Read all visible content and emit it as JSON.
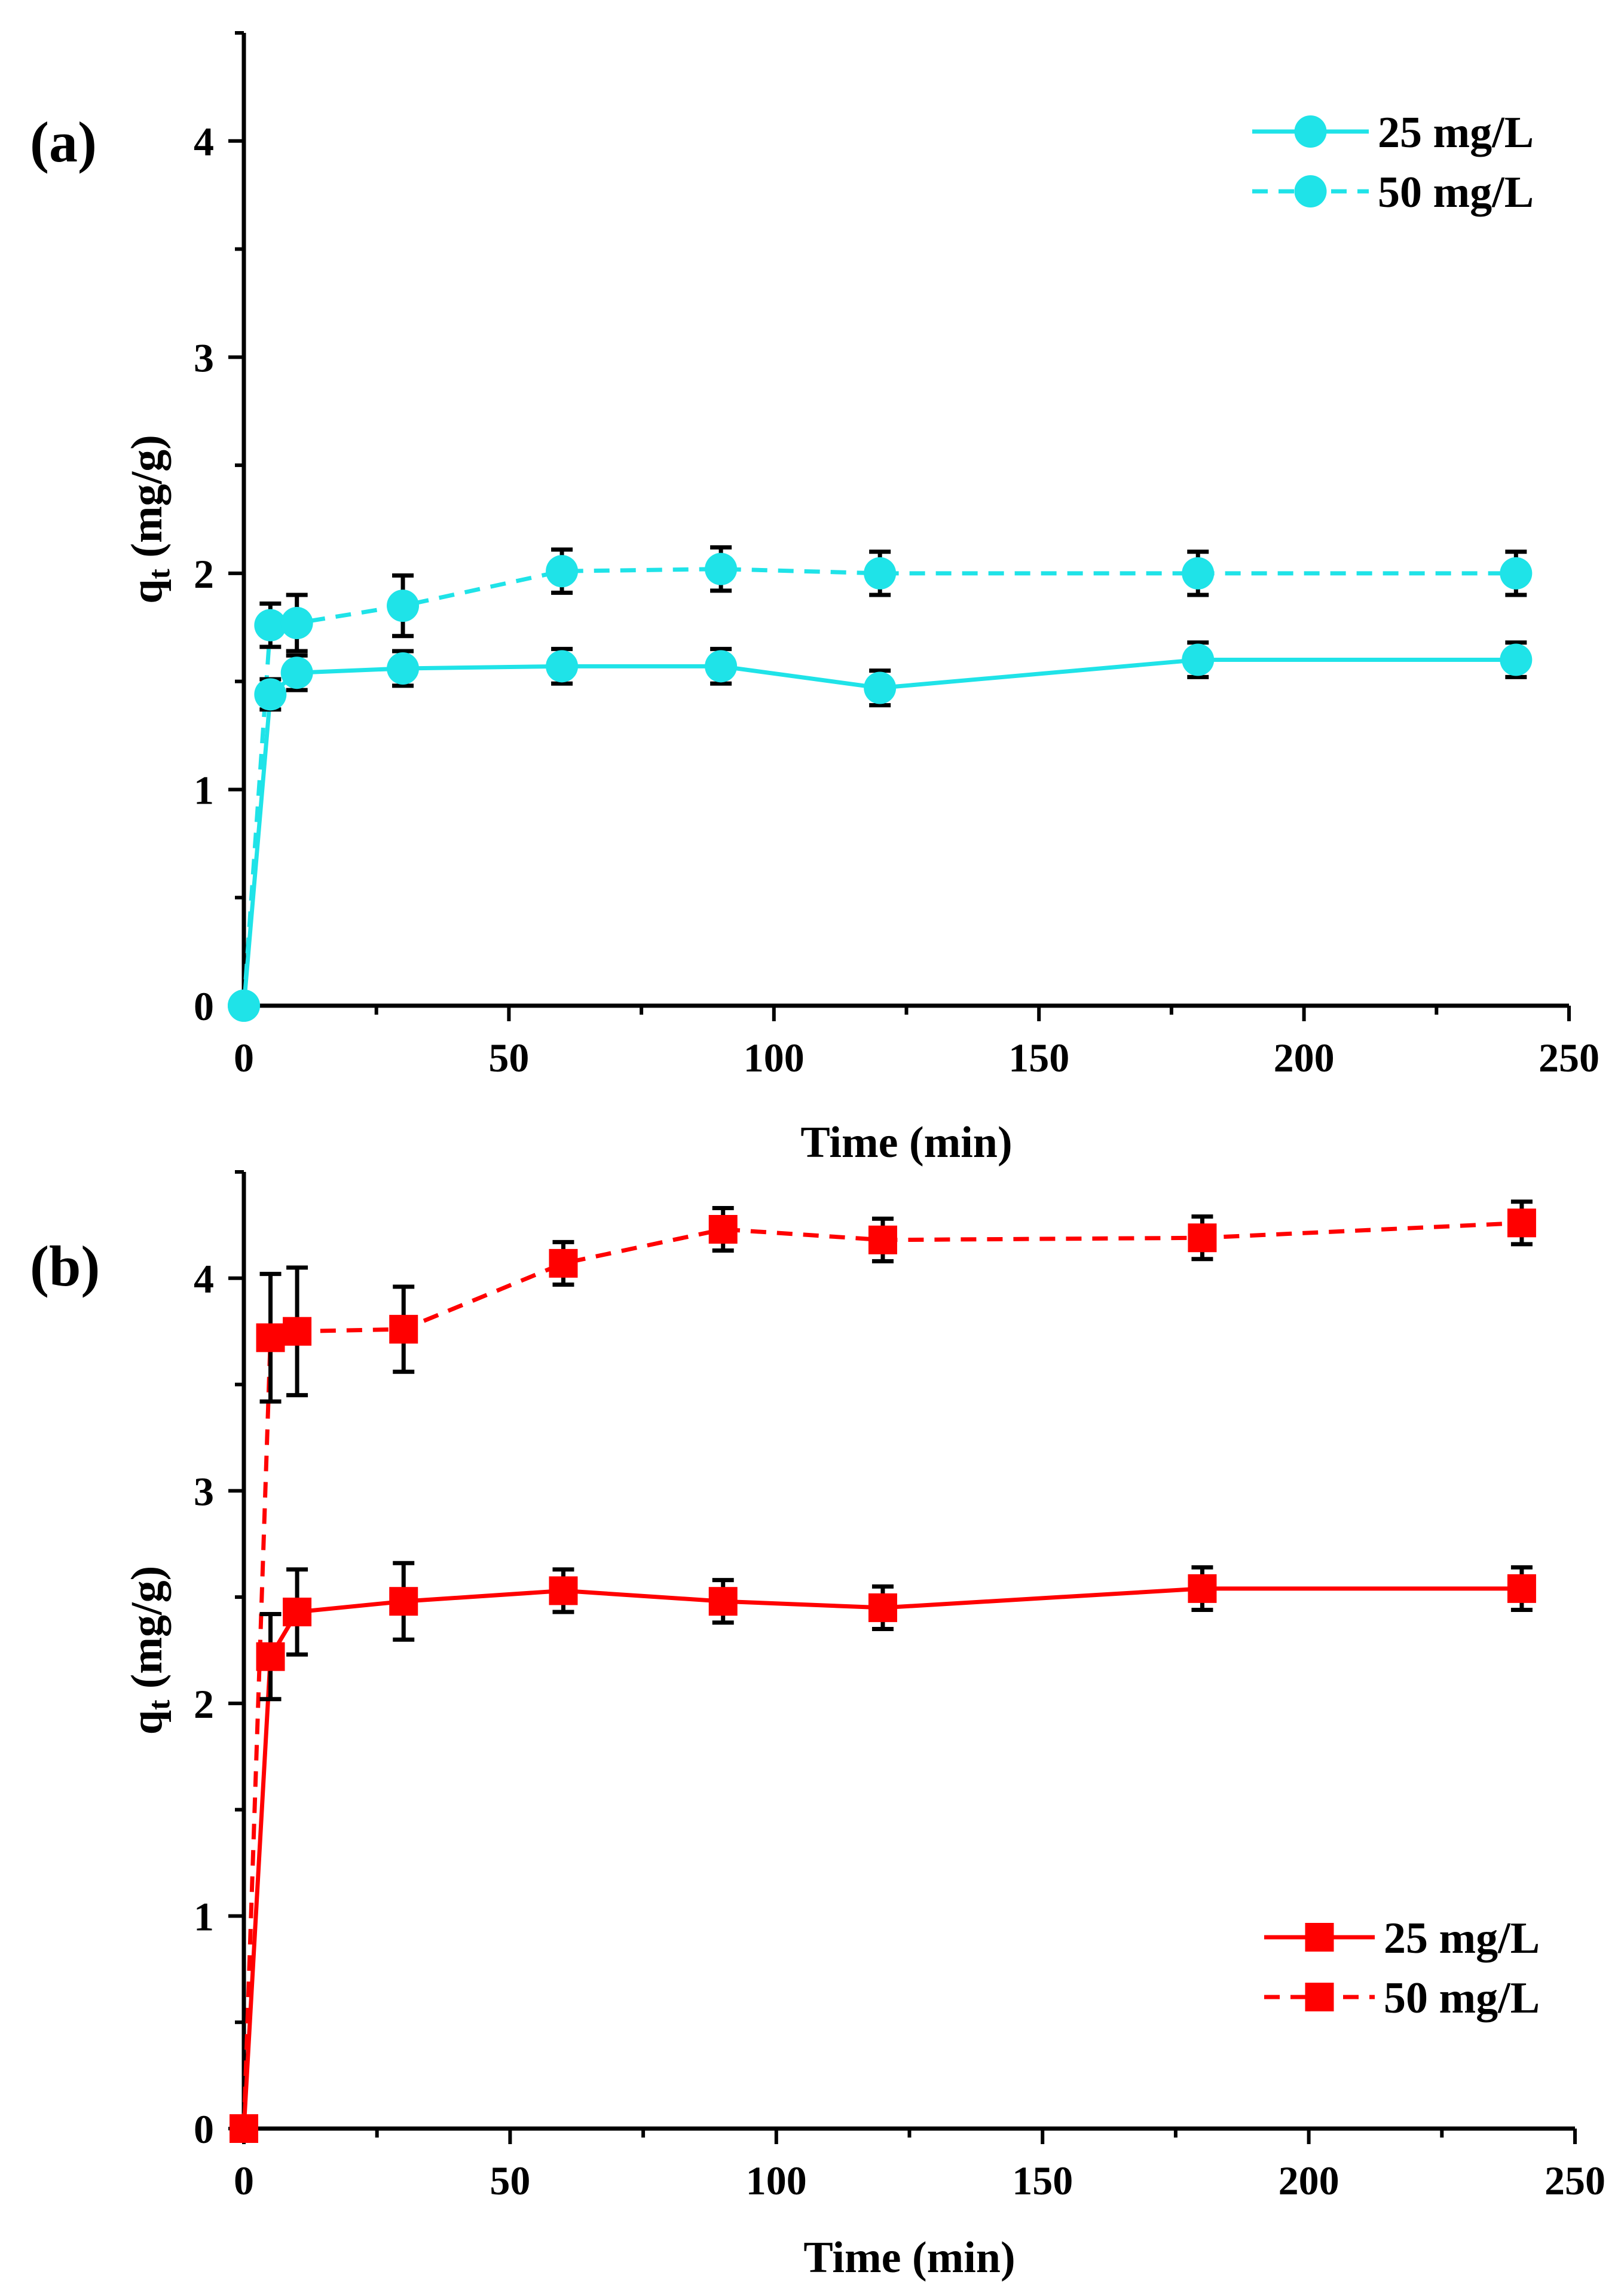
{
  "chart_data": [
    {
      "type": "line",
      "panel_label": "(a)",
      "xlabel": "Time (min)",
      "ylabel_main": "q",
      "ylabel_sub": "t",
      "ylabel_unit": " (mg/g)",
      "xlim": [
        0,
        250
      ],
      "ylim": [
        0,
        4.5
      ],
      "xticks": [
        0,
        50,
        100,
        150,
        200,
        250
      ],
      "yticks": [
        0,
        1,
        2,
        3,
        4
      ],
      "xtick_labels": [
        "0",
        "50",
        "100",
        "150",
        "200",
        "250"
      ],
      "ytick_labels": [
        "0",
        "1",
        "2",
        "3",
        "4"
      ],
      "legend_position": "top-right",
      "marker": "circle",
      "color": "#1fe3e8",
      "series": [
        {
          "name": "25 mg/L",
          "line_style": "solid",
          "x": [
            0,
            5,
            10,
            30,
            60,
            90,
            120,
            180,
            240
          ],
          "y": [
            0,
            1.44,
            1.54,
            1.56,
            1.57,
            1.57,
            1.47,
            1.6,
            1.6
          ],
          "err": [
            0,
            0.07,
            0.08,
            0.08,
            0.08,
            0.08,
            0.08,
            0.08,
            0.08
          ]
        },
        {
          "name": "50 mg/L",
          "line_style": "dashed",
          "x": [
            0,
            5,
            10,
            30,
            60,
            90,
            120,
            180,
            240
          ],
          "y": [
            0,
            1.76,
            1.77,
            1.85,
            2.01,
            2.02,
            2.0,
            2.0,
            2.0
          ],
          "err": [
            0,
            0.1,
            0.13,
            0.14,
            0.1,
            0.1,
            0.1,
            0.1,
            0.1
          ]
        }
      ]
    },
    {
      "type": "line",
      "panel_label": "(b)",
      "xlabel": "Time (min)",
      "ylabel_main": "q",
      "ylabel_sub": "t",
      "ylabel_unit": " (mg/g)",
      "xlim": [
        0,
        250
      ],
      "ylim": [
        0,
        4.5
      ],
      "xticks": [
        0,
        50,
        100,
        150,
        200,
        250
      ],
      "yticks": [
        0,
        1,
        2,
        3,
        4
      ],
      "xtick_labels": [
        "0",
        "50",
        "100",
        "150",
        "200",
        "250"
      ],
      "ytick_labels": [
        "0",
        "1",
        "2",
        "3",
        "4"
      ],
      "legend_position": "bottom-right",
      "marker": "square",
      "color": "#ff0000",
      "series": [
        {
          "name": "25 mg/L",
          "line_style": "solid",
          "x": [
            0,
            5,
            10,
            30,
            60,
            90,
            120,
            180,
            240
          ],
          "y": [
            0,
            2.22,
            2.43,
            2.48,
            2.53,
            2.48,
            2.45,
            2.54,
            2.54
          ],
          "err": [
            0,
            0.2,
            0.2,
            0.18,
            0.1,
            0.1,
            0.1,
            0.1,
            0.1
          ]
        },
        {
          "name": "50 mg/L",
          "line_style": "dashed",
          "x": [
            0,
            5,
            10,
            30,
            60,
            90,
            120,
            180,
            240
          ],
          "y": [
            0,
            3.72,
            3.75,
            3.76,
            4.07,
            4.23,
            4.18,
            4.19,
            4.26
          ],
          "err": [
            0,
            0.3,
            0.3,
            0.2,
            0.1,
            0.1,
            0.1,
            0.1,
            0.1
          ]
        }
      ]
    }
  ]
}
